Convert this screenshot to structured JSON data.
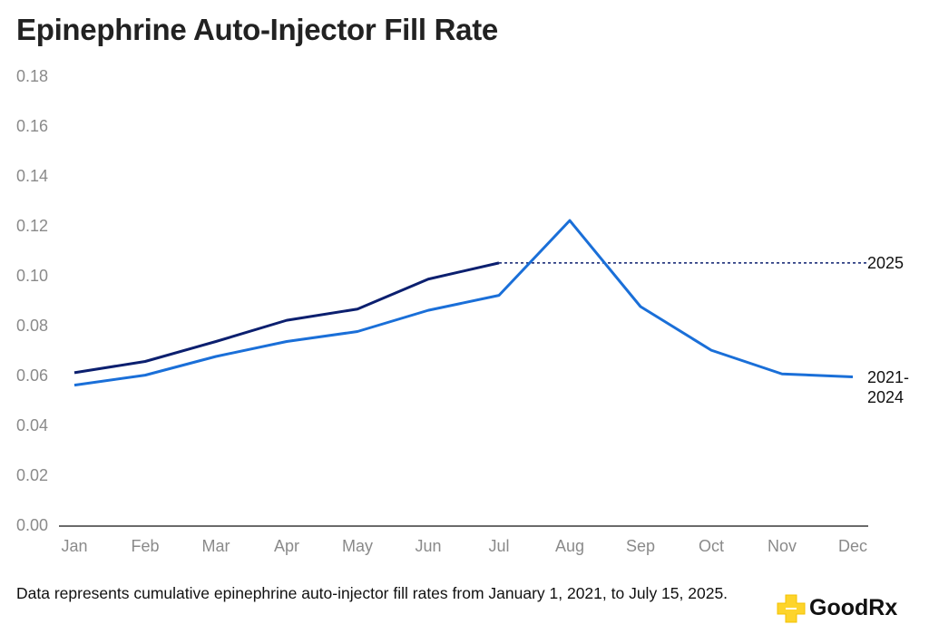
{
  "chart_data": {
    "type": "line",
    "title": "Epinephrine Auto-Injector Fill Rate",
    "categories": [
      "Jan",
      "Feb",
      "Mar",
      "Apr",
      "May",
      "Jun",
      "Jul",
      "Aug",
      "Sep",
      "Oct",
      "Nov",
      "Dec"
    ],
    "series": [
      {
        "name": "2025",
        "color": "#0b1f6f",
        "values": [
          0.0615,
          0.066,
          0.074,
          0.0825,
          0.087,
          0.099,
          0.1055,
          null,
          null,
          null,
          null,
          null
        ]
      },
      {
        "name": "2021-2024",
        "color": "#1a6fd8",
        "values": [
          0.0565,
          0.0605,
          0.068,
          0.074,
          0.078,
          0.0865,
          0.0925,
          0.1225,
          0.088,
          0.0705,
          0.061,
          0.0598
        ]
      }
    ],
    "ylim": [
      0,
      0.18
    ],
    "yticks": [
      {
        "value": 0,
        "label": "0.00"
      },
      {
        "value": 0.02,
        "label": "0.02"
      },
      {
        "value": 0.04,
        "label": "0.04"
      },
      {
        "value": 0.06,
        "label": "0.06"
      },
      {
        "value": 0.08,
        "label": "0.08"
      },
      {
        "value": 0.1,
        "label": "0.10"
      },
      {
        "value": 0.12,
        "label": "0.12"
      },
      {
        "value": 0.14,
        "label": "0.14"
      },
      {
        "value": 0.16,
        "label": "0.16"
      },
      {
        "value": 0.18,
        "label": "0.18"
      }
    ],
    "grid": false,
    "footnote": "Data represents cumulative epinephrine auto-injector fill rates from January 1, 2021, to July 15, 2025.",
    "brand": "GoodRx"
  }
}
